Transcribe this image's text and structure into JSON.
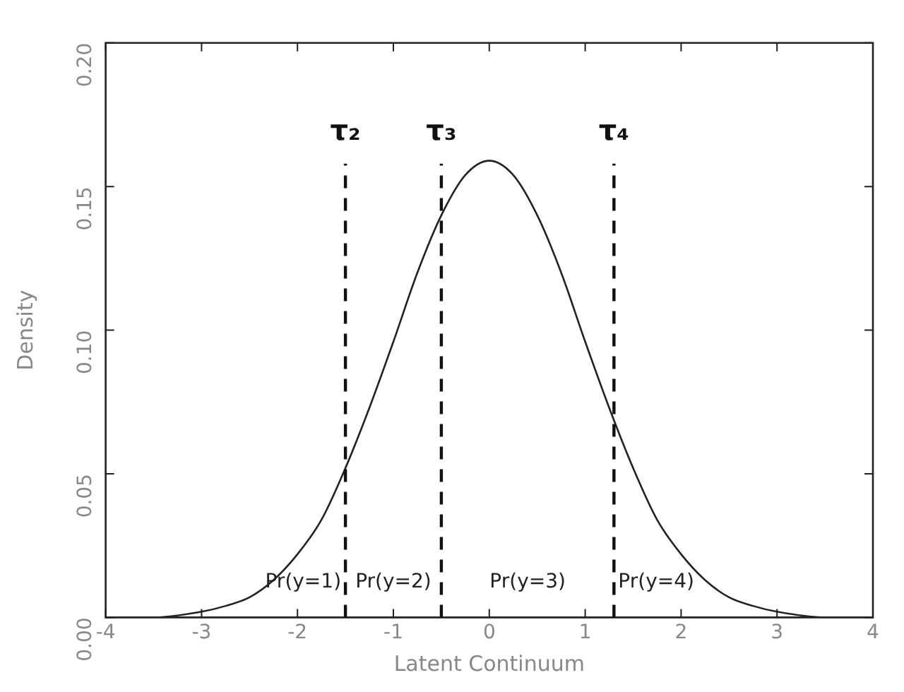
{
  "chart_data": {
    "type": "line",
    "xlabel": "Latent Continuum",
    "ylabel": "Density",
    "x": [
      -4,
      -3.5,
      -3,
      -2.75,
      -2.5,
      -2.25,
      -2,
      -1.75,
      -1.5,
      -1.25,
      -1,
      -0.75,
      -0.5,
      -0.25,
      0,
      0.25,
      0.5,
      0.75,
      1,
      1.25,
      1.5,
      1.75,
      2,
      2.25,
      2.5,
      2.75,
      3,
      3.5,
      4
    ],
    "series": [
      {
        "color": "#222222",
        "values": [
          0.0,
          0.0,
          0.002,
          0.004,
          0.007,
          0.013,
          0.022,
          0.034,
          0.052,
          0.073,
          0.096,
          0.12,
          0.14,
          0.154,
          0.159,
          0.154,
          0.14,
          0.12,
          0.096,
          0.073,
          0.052,
          0.034,
          0.022,
          0.013,
          0.007,
          0.004,
          0.002,
          0.0,
          0.0
        ]
      }
    ],
    "xlim": [
      -4,
      4
    ],
    "xticks": [
      -4,
      -3,
      -2,
      -1,
      0,
      1,
      2,
      3,
      4
    ],
    "ylim": [
      0,
      0.2
    ],
    "yticks": [
      {
        "value": 0,
        "label": "0.00"
      },
      {
        "value": 0.05,
        "label": "0.05"
      },
      {
        "value": 0.1,
        "label": "0.10"
      },
      {
        "value": 0.15,
        "label": "0.15"
      },
      {
        "value": 0.2,
        "label": "0.20"
      }
    ],
    "ref_lines": [
      {
        "axis": "x",
        "value": -1.5,
        "label": "τ₂",
        "line_style": "dashed"
      },
      {
        "axis": "x",
        "value": -0.5,
        "label": "τ₃",
        "line_style": "dashed"
      },
      {
        "axis": "x",
        "value": 1.3,
        "label": "τ₄",
        "line_style": "dashed"
      }
    ],
    "annotations": [
      "Pr(y=1)",
      "Pr(y=2)",
      "Pr(y=3)",
      "Pr(y=4)"
    ],
    "grid": false,
    "legend": false,
    "marker": "none",
    "line_style": "solid"
  }
}
